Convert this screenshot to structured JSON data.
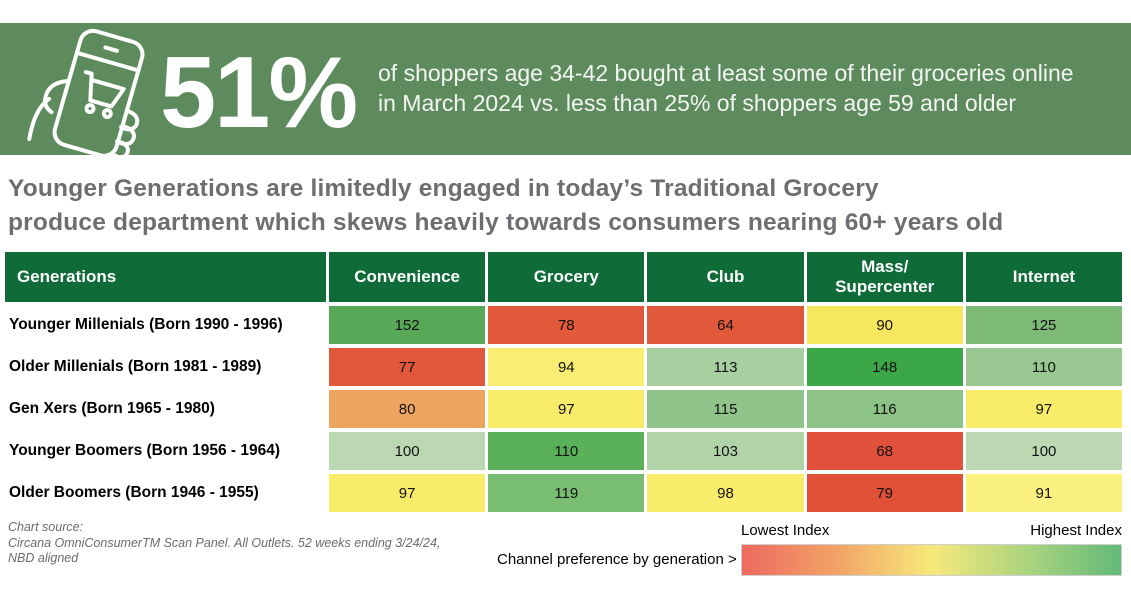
{
  "banner": {
    "bg_color": "#5d8b5d",
    "icon": "phone-shopping-cart-icon",
    "stat": "51%",
    "description_line1": "of shoppers age 34-42 bought at least some of their groceries online",
    "description_line2": "in March 2024 vs. less than 25% of shoppers age 59 and older"
  },
  "headline": {
    "line1": "Younger Generations are limitedly engaged in today’s Traditional Grocery",
    "line2": "produce department which skews heavily towards consumers nearing 60+ years old",
    "color": "#6d6e71"
  },
  "chart_data": {
    "type": "heatmap",
    "title": "Younger Generations are limitedly engaged in today’s Traditional Grocery produce department which skews heavily towards consumers nearing 60+ years old",
    "row_header": "Generations",
    "columns": [
      "Convenience",
      "Grocery",
      "Club",
      "Mass/\nSupercenter",
      "Internet"
    ],
    "header_bg": "#0f6b38",
    "rows": [
      {
        "label": "Younger Millenials (Born 1990 - 1996)",
        "values": [
          152,
          78,
          64,
          90,
          125
        ],
        "colors": [
          "#57a957",
          "#e2583b",
          "#e2583b",
          "#f7e75c",
          "#7eba77"
        ]
      },
      {
        "label": "Older Millenials (Born 1981 - 1989)",
        "values": [
          77,
          94,
          113,
          148,
          110
        ],
        "colors": [
          "#e2583b",
          "#f9ee72",
          "#a9cfa1",
          "#3ca747",
          "#98c791"
        ]
      },
      {
        "label": "Gen Xers (Born 1965 - 1980)",
        "values": [
          80,
          97,
          115,
          116,
          97
        ],
        "colors": [
          "#eda45f",
          "#f8ec68",
          "#90c48a",
          "#8ec388",
          "#f8ec68"
        ]
      },
      {
        "label": "Younger Boomers (Born 1956 - 1964)",
        "values": [
          100,
          110,
          103,
          68,
          100
        ],
        "colors": [
          "#bcd8b2",
          "#5bb15a",
          "#b1d3a8",
          "#e1503a",
          "#bcd8b2"
        ]
      },
      {
        "label": "Older Boomers (Born 1946 - 1955)",
        "values": [
          97,
          119,
          98,
          79,
          91
        ],
        "colors": [
          "#f9ec69",
          "#79bd73",
          "#f9ed6c",
          "#e15138",
          "#fbf181"
        ]
      }
    ],
    "legend": {
      "low_label": "Lowest Index",
      "high_label": "Highest Index",
      "gradient": [
        "#ed6a60",
        "#f2a366",
        "#f7e97b",
        "#acd47f",
        "#63ba78"
      ]
    }
  },
  "footer": {
    "source_label": "Chart source:",
    "source_line1": "Circana OmniConsumerTM Scan Panel. All Outlets. 52 weeks ending 3/24/24,",
    "source_line2": "NBD aligned",
    "note": "Channel preference by generation >"
  }
}
